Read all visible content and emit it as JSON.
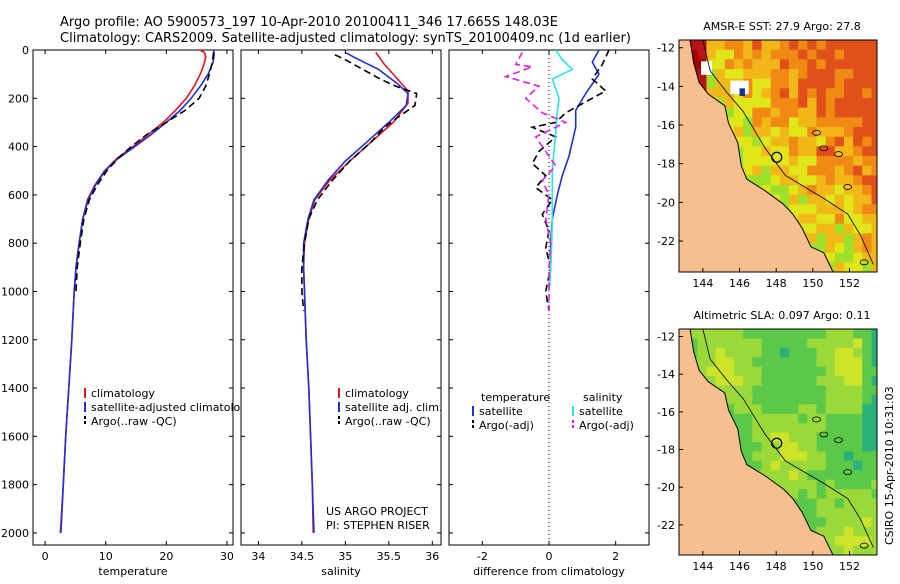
{
  "header": {
    "line1": "Argo profile: AO 5900573_197 10-Apr-2010 20100411_346 17.665S 148.03E",
    "line2": "Climatology: CARS2009. Satellite-adjusted climatology: synTS_20100409.nc (1d earlier)"
  },
  "colors": {
    "red": "#e8141c",
    "blue": "#1f2fd6",
    "black": "#000000",
    "cyan": "#28e6e6",
    "magenta": "#e21ee2",
    "land": "#f5c08d"
  },
  "chart_data": [
    {
      "type": "line",
      "xlabel": "temperature",
      "xlim": [
        -2,
        31
      ],
      "ylim": [
        0,
        2050
      ],
      "xticks": [
        0,
        10,
        20,
        30
      ],
      "yticks": [
        0,
        200,
        400,
        600,
        800,
        1000,
        1200,
        1400,
        1600,
        1800,
        2000
      ],
      "legend": [
        "climatology",
        "satellite-adjusted climatolog",
        "Argo(..raw -QC)"
      ],
      "series": [
        {
          "name": "climatology",
          "color": "red",
          "dash": false,
          "points": [
            [
              25.5,
              0
            ],
            [
              26.3,
              10
            ],
            [
              26.5,
              30
            ],
            [
              26.2,
              60
            ],
            [
              25.6,
              100
            ],
            [
              24.6,
              150
            ],
            [
              23.3,
              200
            ],
            [
              21.5,
              250
            ],
            [
              19.5,
              300
            ],
            [
              17,
              350
            ],
            [
              14.5,
              400
            ],
            [
              11.8,
              450
            ],
            [
              9.8,
              500
            ],
            [
              8.2,
              560
            ],
            [
              7,
              620
            ],
            [
              6.2,
              700
            ],
            [
              5.6,
              800
            ],
            [
              5.1,
              900
            ],
            [
              4.8,
              1000
            ],
            [
              4.4,
              1200
            ],
            [
              3.9,
              1400
            ],
            [
              3.4,
              1600
            ],
            [
              3.0,
              1800
            ],
            [
              2.5,
              2000
            ]
          ]
        },
        {
          "name": "satellite-adjusted climatology",
          "color": "blue",
          "dash": false,
          "points": [
            [
              27.8,
              0
            ],
            [
              27.9,
              20
            ],
            [
              27.7,
              50
            ],
            [
              26.9,
              100
            ],
            [
              25.6,
              150
            ],
            [
              24.1,
              200
            ],
            [
              22.3,
              250
            ],
            [
              20,
              300
            ],
            [
              17.5,
              350
            ],
            [
              14.8,
              400
            ],
            [
              12,
              450
            ],
            [
              9.9,
              500
            ],
            [
              8.3,
              560
            ],
            [
              7.1,
              620
            ],
            [
              6.2,
              700
            ],
            [
              5.6,
              800
            ],
            [
              5.1,
              900
            ],
            [
              4.8,
              1000
            ],
            [
              4.4,
              1200
            ],
            [
              3.9,
              1400
            ],
            [
              3.4,
              1600
            ],
            [
              3.0,
              1800
            ],
            [
              2.6,
              2000
            ]
          ]
        },
        {
          "name": "Argo(..raw -QC)",
          "color": "black",
          "dash": true,
          "points": [
            [
              27.8,
              10
            ],
            [
              27.6,
              50
            ],
            [
              27.1,
              100
            ],
            [
              26.5,
              150
            ],
            [
              25.4,
              200
            ],
            [
              23.1,
              250
            ],
            [
              20,
              300
            ],
            [
              16.8,
              350
            ],
            [
              14.2,
              400
            ],
            [
              12,
              450
            ],
            [
              10.2,
              500
            ],
            [
              8.6,
              560
            ],
            [
              7.3,
              620
            ],
            [
              6.4,
              700
            ],
            [
              5.8,
              800
            ],
            [
              5.3,
              900
            ],
            [
              5.1,
              1000
            ]
          ]
        }
      ]
    },
    {
      "type": "line",
      "xlabel": "salinity",
      "xlim": [
        33.8,
        36.1
      ],
      "ylim": [
        0,
        2050
      ],
      "xticks": [
        34,
        34.5,
        35,
        35.5,
        36
      ],
      "yticks": [
        0,
        200,
        400,
        600,
        800,
        1000,
        1200,
        1400,
        1600,
        1800,
        2000
      ],
      "legend": [
        "climatology",
        "satellite adj. clim.",
        "Argo(..raw -QC)"
      ],
      "credit": [
        "US ARGO PROJECT",
        "PI: STEPHEN RISER"
      ],
      "series": [
        {
          "name": "climatology",
          "color": "red",
          "dash": false,
          "points": [
            [
              35.35,
              10
            ],
            [
              35.45,
              60
            ],
            [
              35.6,
              120
            ],
            [
              35.72,
              170
            ],
            [
              35.72,
              220
            ],
            [
              35.55,
              300
            ],
            [
              35.3,
              380
            ],
            [
              35.05,
              460
            ],
            [
              34.82,
              540
            ],
            [
              34.65,
              620
            ],
            [
              34.58,
              700
            ],
            [
              34.53,
              800
            ],
            [
              34.52,
              900
            ],
            [
              34.53,
              1000
            ],
            [
              34.55,
              1200
            ],
            [
              34.58,
              1400
            ],
            [
              34.6,
              1600
            ],
            [
              34.62,
              1800
            ],
            [
              34.63,
              2000
            ]
          ]
        },
        {
          "name": "satellite adj. clim.",
          "color": "blue",
          "dash": false,
          "points": [
            [
              35.0,
              10
            ],
            [
              35.1,
              30
            ],
            [
              35.38,
              80
            ],
            [
              35.6,
              140
            ],
            [
              35.72,
              180
            ],
            [
              35.7,
              230
            ],
            [
              35.5,
              300
            ],
            [
              35.25,
              380
            ],
            [
              35.0,
              460
            ],
            [
              34.8,
              540
            ],
            [
              34.64,
              620
            ],
            [
              34.57,
              700
            ],
            [
              34.52,
              800
            ],
            [
              34.52,
              900
            ],
            [
              34.53,
              1000
            ],
            [
              34.55,
              1200
            ],
            [
              34.58,
              1400
            ],
            [
              34.6,
              1600
            ],
            [
              34.62,
              1800
            ],
            [
              34.64,
              2000
            ]
          ]
        },
        {
          "name": "Argo(..raw -QC)",
          "color": "black",
          "dash": true,
          "points": [
            [
              34.88,
              20
            ],
            [
              35.0,
              40
            ],
            [
              35.2,
              80
            ],
            [
              35.4,
              120
            ],
            [
              35.58,
              150
            ],
            [
              35.82,
              180
            ],
            [
              35.8,
              230
            ],
            [
              35.6,
              280
            ],
            [
              35.45,
              320
            ],
            [
              35.3,
              380
            ],
            [
              35.05,
              460
            ],
            [
              34.85,
              540
            ],
            [
              34.68,
              620
            ],
            [
              34.58,
              700
            ],
            [
              34.53,
              800
            ],
            [
              34.5,
              900
            ],
            [
              34.5,
              1000
            ],
            [
              34.52,
              1080
            ]
          ]
        }
      ]
    },
    {
      "type": "line",
      "xlabel": "difference from climatology",
      "xlim": [
        -3,
        3
      ],
      "ylim": [
        0,
        2050
      ],
      "xticks": [
        -2,
        0,
        2
      ],
      "yticks": [
        0,
        200,
        400,
        600,
        800,
        1000,
        1200,
        1400,
        1600,
        1800,
        2000
      ],
      "legend_titles": [
        "temperature",
        "salinity"
      ],
      "legend": [
        "satellite",
        "Argo(-adj)",
        "satellite",
        "Argo(-adj)"
      ],
      "series": [
        {
          "name": "temperature satellite",
          "color": "blue",
          "dash": false,
          "points": [
            [
              1.5,
              0
            ],
            [
              1.3,
              50
            ],
            [
              1.5,
              100
            ],
            [
              1.1,
              180
            ],
            [
              0.8,
              250
            ],
            [
              0.8,
              320
            ],
            [
              0.7,
              380
            ],
            [
              0.6,
              440
            ],
            [
              0.4,
              520
            ],
            [
              0.25,
              600
            ],
            [
              0.1,
              700
            ],
            [
              0.05,
              800
            ],
            [
              0.05,
              900
            ],
            [
              0.0,
              1000
            ]
          ]
        },
        {
          "name": "temperature Argo(-adj)",
          "color": "black",
          "dash": true,
          "points": [
            [
              1.8,
              0
            ],
            [
              1.6,
              60
            ],
            [
              1.3,
              120
            ],
            [
              1.7,
              170
            ],
            [
              0.9,
              230
            ],
            [
              0.5,
              260
            ],
            [
              0.2,
              300
            ],
            [
              -0.5,
              320
            ],
            [
              0.2,
              360
            ],
            [
              -0.3,
              420
            ],
            [
              -0.5,
              470
            ],
            [
              -0.1,
              520
            ],
            [
              -0.4,
              570
            ],
            [
              0.1,
              620
            ],
            [
              -0.2,
              680
            ],
            [
              0.0,
              750
            ],
            [
              -0.1,
              820
            ],
            [
              0.05,
              900
            ],
            [
              -0.1,
              1000
            ],
            [
              0.0,
              1080
            ]
          ]
        },
        {
          "name": "salinity satellite",
          "color": "cyan",
          "dash": false,
          "points": [
            [
              0.2,
              0
            ],
            [
              0.4,
              40
            ],
            [
              0.7,
              80
            ],
            [
              0.1,
              120
            ],
            [
              0.2,
              160
            ],
            [
              0.3,
              200
            ],
            [
              0.25,
              260
            ],
            [
              0.2,
              340
            ],
            [
              0.15,
              420
            ],
            [
              0.1,
              500
            ],
            [
              0.1,
              600
            ],
            [
              0.1,
              700
            ],
            [
              0.08,
              800
            ],
            [
              0.05,
              900
            ],
            [
              0.0,
              1000
            ]
          ]
        },
        {
          "name": "salinity Argo(-adj)",
          "color": "magenta",
          "dash": true,
          "points": [
            [
              -0.8,
              10
            ],
            [
              -1.0,
              60
            ],
            [
              -0.5,
              70
            ],
            [
              -1.3,
              110
            ],
            [
              -0.3,
              150
            ],
            [
              -0.7,
              200
            ],
            [
              -0.2,
              260
            ],
            [
              0.5,
              300
            ],
            [
              -0.4,
              360
            ],
            [
              -0.1,
              420
            ],
            [
              0.2,
              480
            ],
            [
              -0.2,
              540
            ],
            [
              0.0,
              600
            ],
            [
              -0.1,
              700
            ],
            [
              0.05,
              800
            ],
            [
              0.0,
              900
            ],
            [
              0.0,
              1000
            ],
            [
              0.0,
              1080
            ]
          ]
        }
      ]
    },
    {
      "type": "heatmap",
      "title": "AMSR-E SST: 27.9 Argo: 27.8",
      "xlim": [
        142.7,
        153.5
      ],
      "ylim": [
        -23.6,
        -11.6
      ],
      "xticks": [
        144,
        146,
        148,
        150,
        152
      ],
      "yticks": [
        -12,
        -14,
        -16,
        -18,
        -20,
        -22
      ],
      "marker": {
        "lon": 148.03,
        "lat": -17.665
      }
    },
    {
      "type": "heatmap",
      "title": "Altimetric SLA: 0.097 Argo: 0.11",
      "xlim": [
        142.7,
        153.5
      ],
      "ylim": [
        -23.6,
        -11.6
      ],
      "xticks": [
        144,
        146,
        148,
        150,
        152
      ],
      "yticks": [
        -12,
        -14,
        -16,
        -18,
        -20,
        -22
      ],
      "marker": {
        "lon": 148.03,
        "lat": -17.665
      }
    }
  ],
  "side_label": "CSIRO  15-Apr-2010 10:31:03"
}
